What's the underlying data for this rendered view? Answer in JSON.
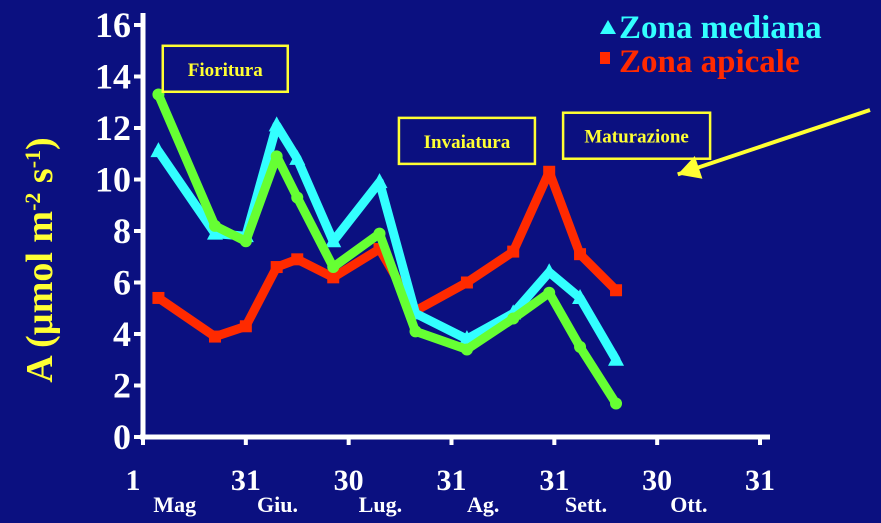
{
  "colors": {
    "background": "#0b1080",
    "axis": "#ffffff",
    "label_yellow": "#ffff33",
    "mediana": "#33ffff",
    "apicale": "#ff2a00",
    "green": "#66ff33"
  },
  "chart_data": {
    "type": "line",
    "ylabel": "A (µmol m-2 s-1)",
    "ylabel_main": "A (µmol m",
    "ylabel_sup1": "-2",
    "ylabel_mid": " s",
    "ylabel_sup2": "-1",
    "ylabel_end": ")",
    "ylim": [
      0,
      16
    ],
    "yticks": [
      "0",
      "2",
      "4",
      "6",
      "8",
      "10",
      "12",
      "14",
      "16"
    ],
    "xlim": [
      0,
      12
    ],
    "xticks_days": [
      {
        "text": "1",
        "x": 0
      },
      {
        "text": "31",
        "x": 2
      },
      {
        "text": "30",
        "x": 4
      },
      {
        "text": "31",
        "x": 6
      },
      {
        "text": "31",
        "x": 8
      },
      {
        "text": "30",
        "x": 10
      },
      {
        "text": "31",
        "x": 12
      }
    ],
    "xticks_months": [
      {
        "text": "Mag",
        "x": 0.5
      },
      {
        "text": "Giu.",
        "x": 2.5
      },
      {
        "text": "Lug.",
        "x": 4.5
      },
      {
        "text": "Ag.",
        "x": 6.5
      },
      {
        "text": "Sett.",
        "x": 8.5
      },
      {
        "text": "Ott.",
        "x": 10.5
      }
    ],
    "annotations": [
      {
        "text": "Fioritura",
        "x": 1.6,
        "y": 14.3
      },
      {
        "text": "Invaiatura",
        "x": 6.3,
        "y": 11.5
      },
      {
        "text": "Maturazione",
        "x": 9.6,
        "y": 11.7
      }
    ],
    "legend": [
      {
        "name": "Zona mediana",
        "marker": "triangle",
        "series": 0
      },
      {
        "name": "Zona apicale",
        "marker": "square",
        "series": 1
      }
    ],
    "legend_placement": "top-right",
    "series": [
      {
        "name": "Zona mediana",
        "color": "#33ffff",
        "x": [
          0.3,
          1.4,
          2.0,
          2.6,
          3.0,
          3.7,
          4.6,
          5.3,
          6.3,
          7.2,
          7.9,
          8.5,
          9.2
        ],
        "y": [
          11.1,
          7.9,
          7.8,
          12.1,
          10.8,
          7.6,
          9.9,
          4.8,
          3.8,
          4.8,
          6.4,
          5.4,
          3.0
        ]
      },
      {
        "name": "Zona apicale",
        "color": "#ff2a00",
        "x": [
          0.3,
          1.4,
          2.0,
          2.6,
          3.0,
          3.7,
          4.6,
          5.3,
          6.3,
          7.2,
          7.9,
          8.5,
          9.2
        ],
        "y": [
          5.4,
          3.9,
          4.3,
          6.6,
          6.9,
          6.2,
          7.3,
          4.9,
          6.0,
          7.2,
          10.3,
          7.1,
          5.7
        ]
      },
      {
        "color": "#66ff33",
        "x": [
          0.3,
          1.4,
          2.0,
          2.6,
          3.0,
          3.7,
          4.6,
          5.3,
          6.3,
          7.2,
          7.9,
          8.5,
          9.2
        ],
        "y": [
          13.3,
          8.2,
          7.6,
          10.9,
          9.3,
          6.6,
          7.9,
          4.1,
          3.4,
          4.6,
          5.6,
          3.5,
          1.3
        ]
      }
    ],
    "arrow": {
      "from": [
        12.0,
        12.7
      ],
      "to": [
        10.4,
        10.2
      ]
    }
  }
}
